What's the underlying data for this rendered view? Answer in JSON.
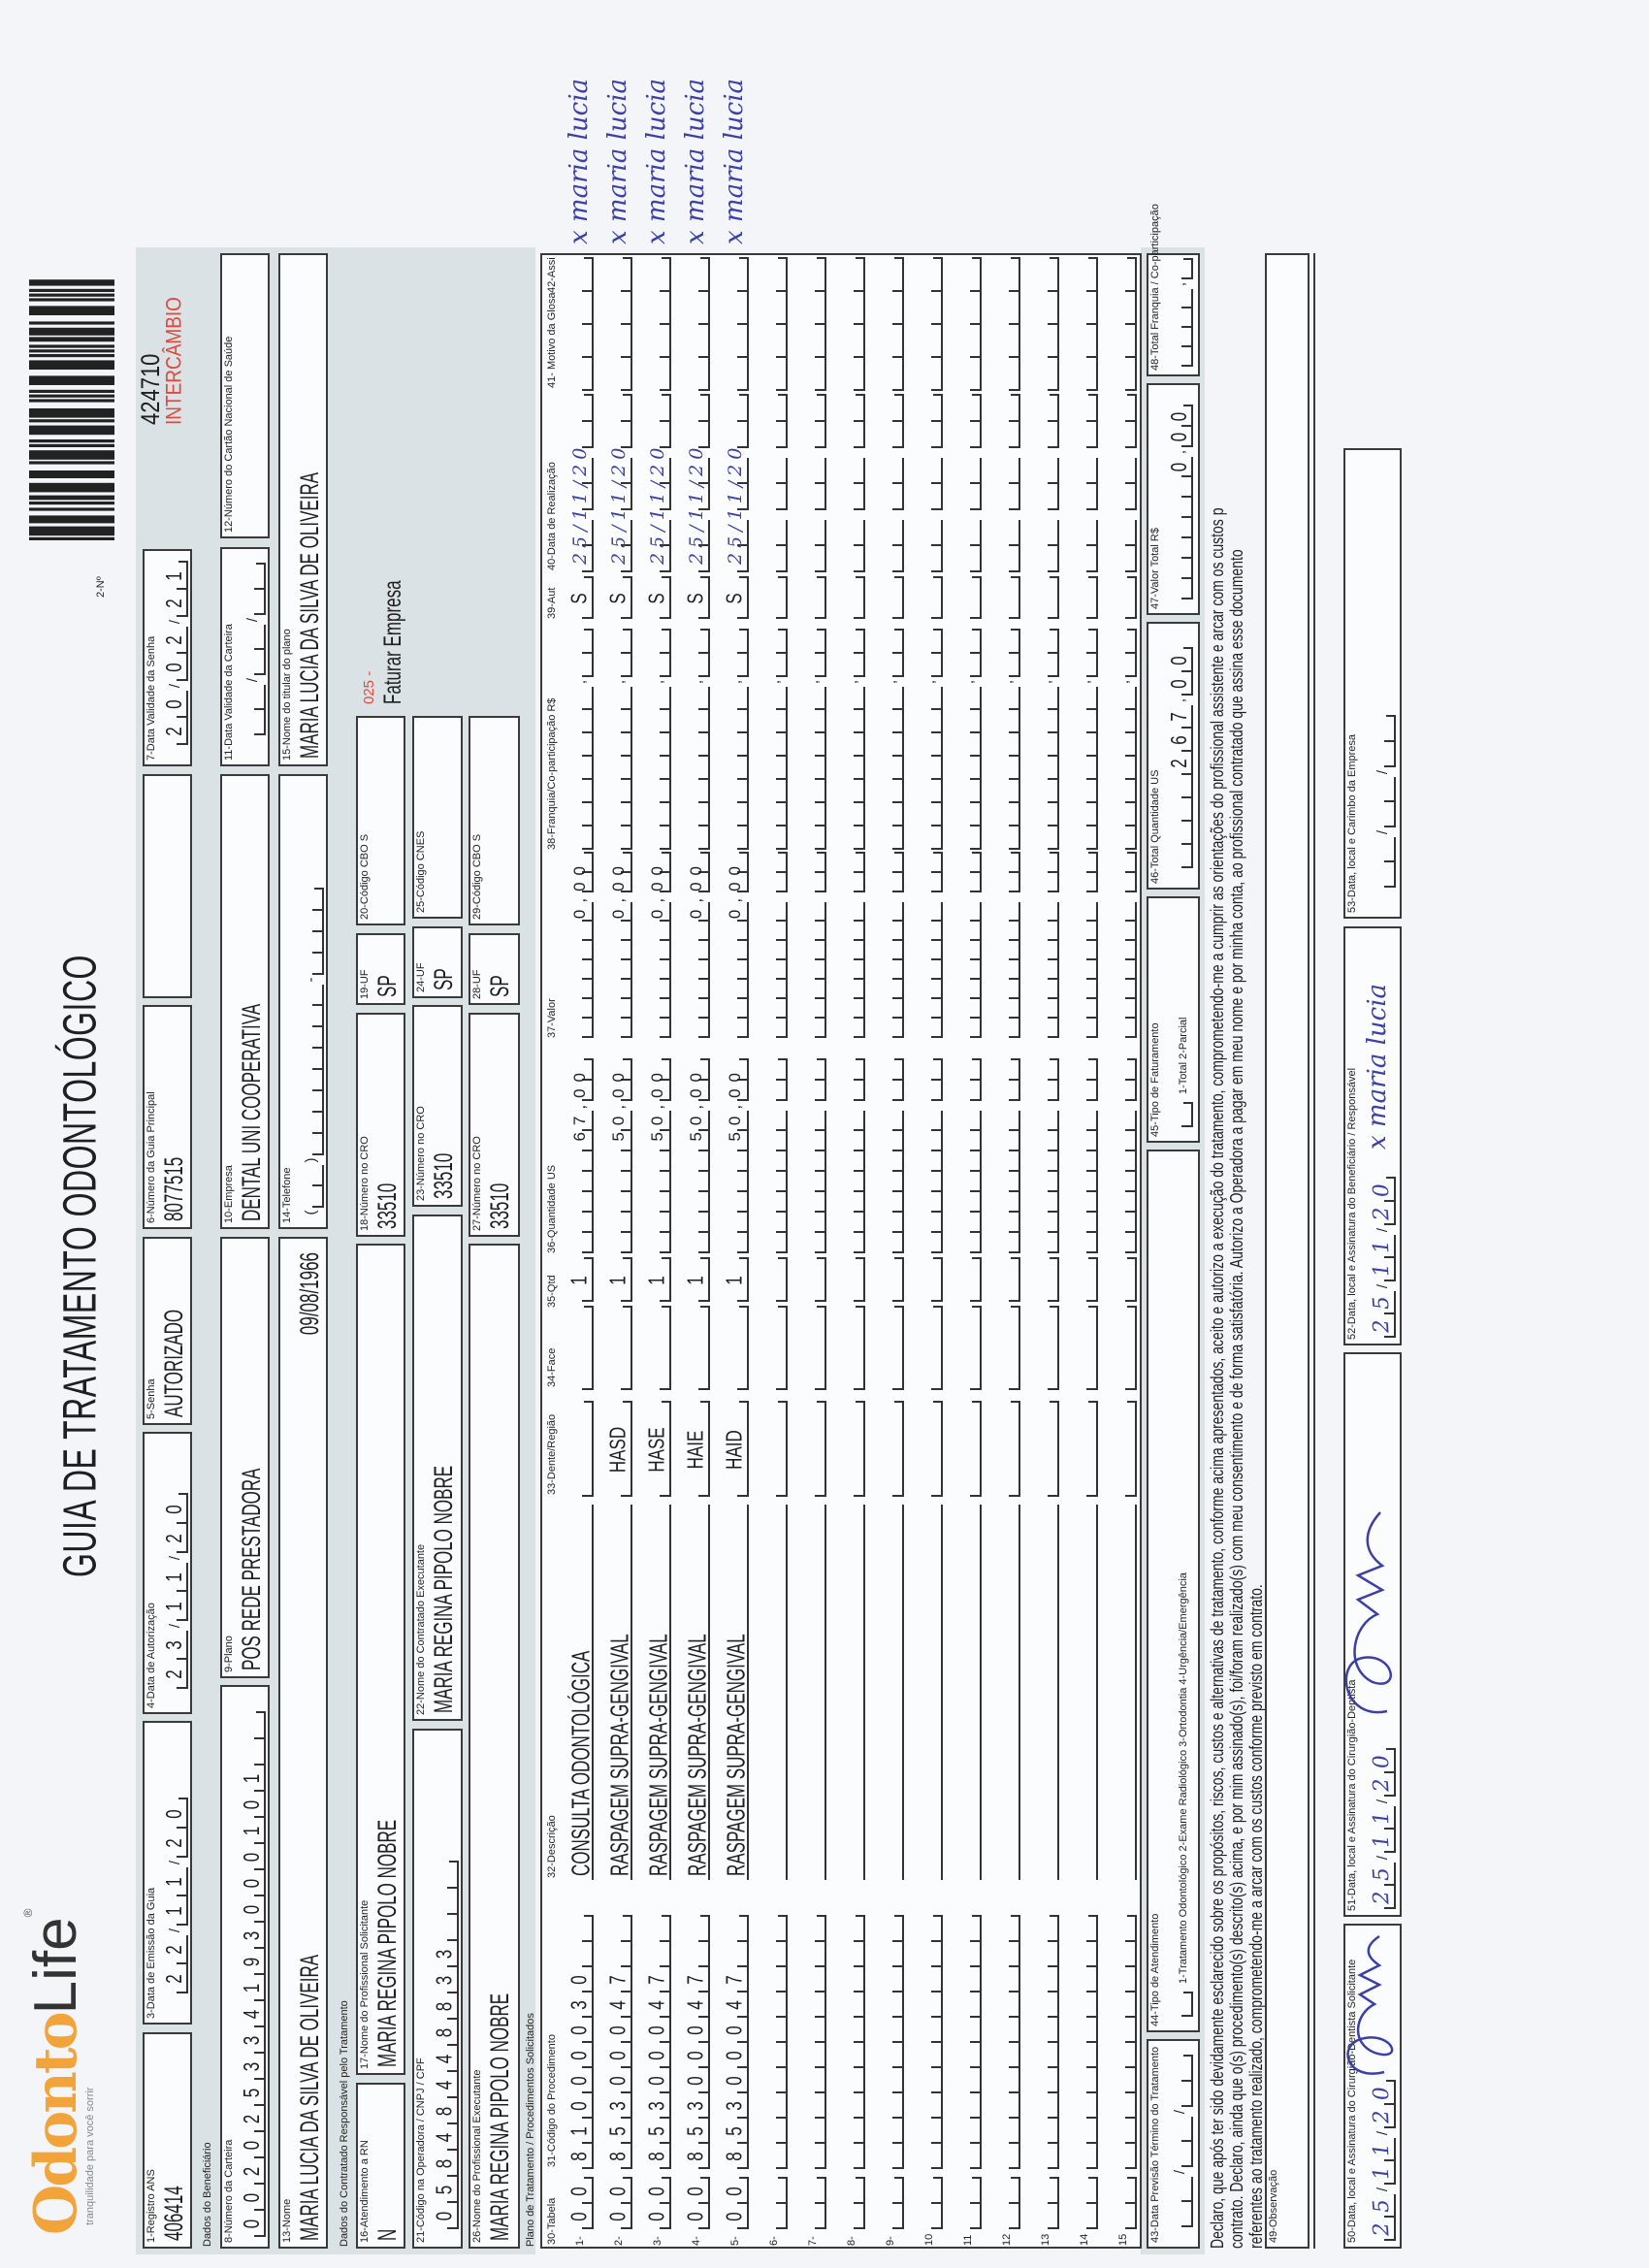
{
  "logo": {
    "brand_primary": "Odonto",
    "brand_secondary": "Life",
    "registered_mark": "®",
    "tagline": "tranquilidade para você sorrir",
    "brand_color": "#f2a33a"
  },
  "header": {
    "title": "GUIA DE TRATAMENTO ODONTOLÓGICO",
    "number_label": "2-Nº",
    "number": "424710",
    "exchange": "INTERCÂMBIO",
    "exchange_color": "#e04a3c"
  },
  "sections": {
    "beneficiary": "Dados do Beneficiário",
    "contractor": "Dados do Contratado Responsável pelo Tratamento",
    "plan": "Plano de Tratamento / Procedimentos Solicitados"
  },
  "fields": {
    "f1": {
      "label": "1-Registro ANS",
      "value": "406414"
    },
    "f3": {
      "label": "3-Data de Emissão da Guia",
      "value": "22/11/20"
    },
    "f4": {
      "label": "4-Data de Autorização",
      "value": "23/11/20"
    },
    "f5": {
      "label": "5-Senha",
      "value": "AUTORIZADO"
    },
    "f6": {
      "label": "6-Número da Guia Principal",
      "value": "8077515"
    },
    "f7": {
      "label": "7-Data Validade da Senha",
      "value": "20/02/21"
    },
    "f8": {
      "label": "8-Número da Carteira",
      "value": "002025334193000101"
    },
    "f9": {
      "label": "9-Plano",
      "value": "POS REDE PRESTADORA"
    },
    "f10": {
      "label": "10-Empresa",
      "value": "DENTAL UNI  COOPERATIVA"
    },
    "f11": {
      "label": "11-Data Validade da Carteira",
      "value": ""
    },
    "f12": {
      "label": "12-Número do Cartão Nacional de Saúde",
      "value": ""
    },
    "f13": {
      "label": "13-Nome",
      "value": "MARIA LUCIA DA SILVA DE OLIVEIRA",
      "birth_date": "09/08/1966"
    },
    "f14": {
      "label": "14-Telefone",
      "value": ""
    },
    "f15": {
      "label": "15-Nome do titular do plano",
      "value": "MARIA LUCIA DA SILVA DE OLIVEIRA"
    },
    "f16": {
      "label": "16-Atendimento a RN",
      "value": "N"
    },
    "f17": {
      "label": "17-Nome do Profissional Solicitante",
      "value": "MARIA REGINA PIPOLO NOBRE"
    },
    "f18": {
      "label": "18-Número no CRO",
      "value": "33510"
    },
    "f19": {
      "label": "19-UF",
      "value": "SP"
    },
    "f20": {
      "label": "20-Código CBO S",
      "value": ""
    },
    "f21": {
      "label": "21-Código na Operadora / CNPJ / CPF",
      "value": "05848448833"
    },
    "f22": {
      "label": "22-Nome do Contratado Executante",
      "value": "MARIA REGINA PIPOLO NOBRE"
    },
    "f23": {
      "label": "23-Número no CRO",
      "value": "33510"
    },
    "f24": {
      "label": "24-UF",
      "value": "SP"
    },
    "f25": {
      "label": "25-Código CNES",
      "value": ""
    },
    "f26": {
      "label": "26-Nome do Profissional Executante",
      "value": "MARIA REGINA PIPOLO NOBRE"
    },
    "f27": {
      "label": "27-Número no CRO",
      "value": "33510"
    },
    "f28": {
      "label": "28-UF",
      "value": "SP"
    },
    "f29": {
      "label": "29-Código CBO S",
      "value": ""
    }
  },
  "billing": {
    "code": "025 -",
    "text": "Faturar Empresa",
    "code_color": "#e04a3c"
  },
  "table": {
    "headers": {
      "tabela": "30-Tabela",
      "code": "31-Código do Procedimento",
      "description": "32-Descrição",
      "tooth": "33-Dente/Região",
      "face": "34-Face",
      "qty": "35-Qtd",
      "qty_us": "36-Quantidade US",
      "value": "37-Valor",
      "franchise": "38-Franquia/Co-participação R$",
      "aut": "39-Aut",
      "date": "40-Data de Realização",
      "glosa": "41- Motivo da Glosa",
      "signature": "42-Assi"
    },
    "rows": [
      {
        "number": "1-",
        "tabela": "00",
        "code": "81000030",
        "description": "CONSULTA ODONTOLÓGICA",
        "tooth": "",
        "face": "",
        "qty": "1",
        "qty_us": "67,00",
        "value": "0,00",
        "franchise": "",
        "aut": "S",
        "date": "25/11/20",
        "glosa": "",
        "signature": "x maria lucia"
      },
      {
        "number": "2-",
        "tabela": "00",
        "code": "85300047",
        "description": "RASPAGEM SUPRA-GENGIVAL",
        "tooth": "HASD",
        "face": "",
        "qty": "1",
        "qty_us": "50,00",
        "value": "0,00",
        "franchise": "",
        "aut": "S",
        "date": "25/11/20",
        "glosa": "",
        "signature": "x maria lucia"
      },
      {
        "number": "3-",
        "tabela": "00",
        "code": "85300047",
        "description": "RASPAGEM SUPRA-GENGIVAL",
        "tooth": "HASE",
        "face": "",
        "qty": "1",
        "qty_us": "50,00",
        "value": "0,00",
        "franchise": "",
        "aut": "S",
        "date": "25/11/20",
        "glosa": "",
        "signature": "x maria lucia"
      },
      {
        "number": "4-",
        "tabela": "00",
        "code": "85300047",
        "description": "RASPAGEM SUPRA-GENGIVAL",
        "tooth": "HAIE",
        "face": "",
        "qty": "1",
        "qty_us": "50,00",
        "value": "0,00",
        "franchise": "",
        "aut": "S",
        "date": "25/11/20",
        "glosa": "",
        "signature": "x maria lucia"
      },
      {
        "number": "5-",
        "tabela": "00",
        "code": "85300047",
        "description": "RASPAGEM SUPRA-GENGIVAL",
        "tooth": "HAID",
        "face": "",
        "qty": "1",
        "qty_us": "50,00",
        "value": "0,00",
        "franchise": "",
        "aut": "S",
        "date": "25/11/20",
        "glosa": "",
        "signature": "x maria lucia"
      },
      {
        "number": "6-"
      },
      {
        "number": "7-"
      },
      {
        "number": "8-"
      },
      {
        "number": "9-"
      },
      {
        "number": "10"
      },
      {
        "number": "11"
      },
      {
        "number": "12"
      },
      {
        "number": "13"
      },
      {
        "number": "14"
      },
      {
        "number": "15"
      }
    ]
  },
  "footer": {
    "f43": {
      "label": "43-Data Previsão Término do Tratamento",
      "value": ""
    },
    "f44": {
      "label": "44-Tipo de Atendimento",
      "options": "1-Tratamento Odontológico  2-Exame Radiológico  3-Ortodontia  4-Urgência/Emergência",
      "value": ""
    },
    "f45": {
      "label": "45-Tipo de Faturamento",
      "options": "1-Total  2-Parcial",
      "value": ""
    },
    "f46": {
      "label": "46-Total Quantidade US",
      "value": "267,00"
    },
    "f47": {
      "label": "47-Valor Total R$",
      "value": "0,00"
    },
    "f48": {
      "label": "48-Total Franquia / Co-participação",
      "value": ""
    },
    "declaration": [
      "Declaro, que após ter sido devidamente esclarecido sobre os propósitos, riscos, custos e alternativas de tratamento, conforme acima apresentados, aceito e autorizo a execução do tratamento, comprometendo-me a cumprir as orientações do profissional assistente e arcar com os custos p",
      "contrato. Declaro, ainda que o(s) procedimento(s) descrito(s) acima, e por mim assinado(s), foi/foram realizado(s) com meu consentimento e de forma satisfatória. Autorizo a Operadora a pagar em meu nome e por minha conta, ao profissional contratado que assina esse documento",
      "referentes ao tratamento realizado, comprometendo-me a arcar com os custos conforme previsto em contrato."
    ],
    "f49": {
      "label": "49-Observação",
      "value": ""
    },
    "f50": {
      "label": "50-Data, local e Assinatura do Cirurgião-Dentista Solicitante",
      "value": "25/11/20"
    },
    "f51": {
      "label": "51-Data, local e Assinatura do Cirurgião-Dentista",
      "value": "25/11/20"
    },
    "f52": {
      "label": "52-Data, local e Assinatura do Beneficiário / Responsável",
      "value": "25/11/20",
      "signature": "x maria lucia"
    },
    "f53": {
      "label": "53-Data, local e Carimbo da Empresa",
      "value": ""
    }
  },
  "handwriting_color": "#3b3fa8"
}
